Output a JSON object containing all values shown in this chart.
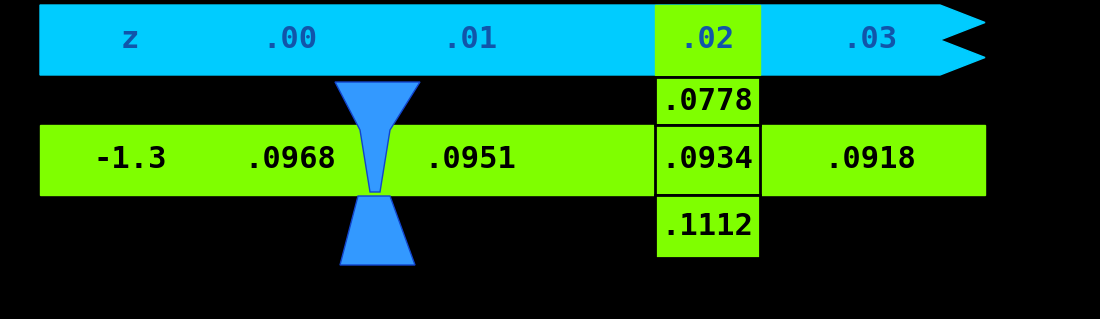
{
  "bg_color": "#000000",
  "header_color": "#00CCFF",
  "header_highlight_color": "#7FFF00",
  "row_color": "#7FFF00",
  "header_text_color": "#1155AA",
  "row_text_color": "#000000",
  "header_labels": [
    "z",
    ".00",
    ".01",
    ".02",
    ".03"
  ],
  "row_label": "-1.3",
  "row_values": [
    ".0968",
    ".0951",
    ".0934",
    ".0918"
  ],
  "above_value": ".0778",
  "below_value": ".1112",
  "bolt_color": "#3399FF"
}
